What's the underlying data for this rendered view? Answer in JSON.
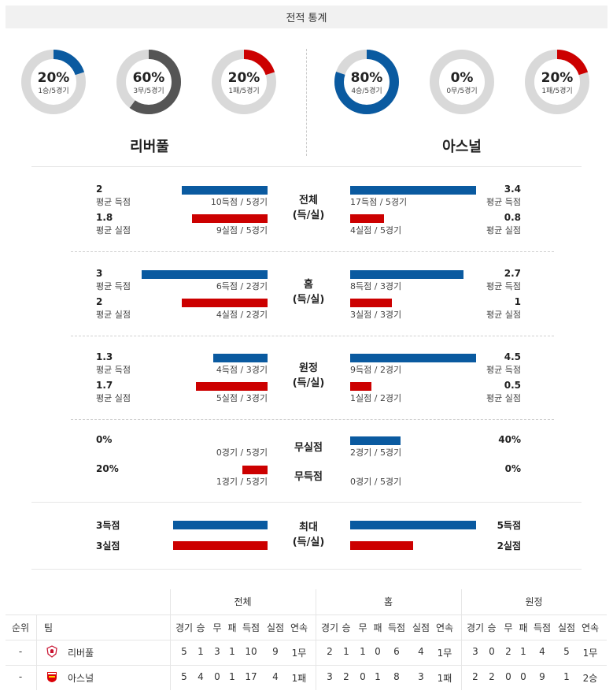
{
  "header": {
    "title": "전적 통계"
  },
  "donuts": [
    {
      "pct": "20%",
      "sub": "1승/5경기",
      "fraction": 0.2,
      "color": "#0a5aa0"
    },
    {
      "pct": "60%",
      "sub": "3무/5경기",
      "fraction": 0.6,
      "color": "#555555"
    },
    {
      "pct": "20%",
      "sub": "1패/5경기",
      "fraction": 0.2,
      "color": "#cc0000"
    },
    {
      "pct": "80%",
      "sub": "4승/5경기",
      "fraction": 0.8,
      "color": "#0a5aa0"
    },
    {
      "pct": "0%",
      "sub": "0무/5경기",
      "fraction": 0.0,
      "color": "#555555"
    },
    {
      "pct": "20%",
      "sub": "1패/5경기",
      "fraction": 0.2,
      "color": "#cc0000"
    }
  ],
  "teams": {
    "home": "리버풀",
    "away": "아스널"
  },
  "sections": [
    {
      "center": [
        "전체",
        "(득/실)"
      ],
      "rows": [
        {
          "left_val": "2",
          "left_sub": "평균 득점",
          "left_cap": "10득점 / 5경기",
          "left_frac": 0.68,
          "right_val": "3.4",
          "right_sub": "평균 득점",
          "right_cap": "17득점 / 5경기",
          "right_frac": 1.0,
          "color": "blue"
        },
        {
          "left_val": "1.8",
          "left_sub": "평균 실점",
          "left_cap": "9실점 / 5경기",
          "left_frac": 0.6,
          "right_val": "0.8",
          "right_sub": "평균 실점",
          "right_cap": "4실점 / 5경기",
          "right_frac": 0.27,
          "color": "red"
        }
      ]
    },
    {
      "center": [
        "홈",
        "(득/실)"
      ],
      "rows": [
        {
          "left_val": "3",
          "left_sub": "평균 득점",
          "left_cap": "6득점 / 2경기",
          "left_frac": 1.0,
          "right_val": "2.7",
          "right_sub": "평균 득점",
          "right_cap": "8득점 / 3경기",
          "right_frac": 0.9,
          "color": "blue"
        },
        {
          "left_val": "2",
          "left_sub": "평균 실점",
          "left_cap": "4실점 / 2경기",
          "left_frac": 0.68,
          "right_val": "1",
          "right_sub": "평균 실점",
          "right_cap": "3실점 / 3경기",
          "right_frac": 0.33,
          "color": "red"
        }
      ]
    },
    {
      "center": [
        "원정",
        "(득/실)"
      ],
      "rows": [
        {
          "left_val": "1.3",
          "left_sub": "평균 득점",
          "left_cap": "4득점 / 3경기",
          "left_frac": 0.43,
          "right_val": "4.5",
          "right_sub": "평균 득점",
          "right_cap": "9득점 / 2경기",
          "right_frac": 1.0,
          "color": "blue"
        },
        {
          "left_val": "1.7",
          "left_sub": "평균 실점",
          "left_cap": "5실점 / 3경기",
          "left_frac": 0.57,
          "right_val": "0.5",
          "right_sub": "평균 실점",
          "right_cap": "1실점 / 2경기",
          "right_frac": 0.17,
          "color": "red"
        }
      ]
    }
  ],
  "clean": {
    "rows": [
      {
        "label": "무실점",
        "left_val": "0%",
        "left_cap": "0경기 / 5경기",
        "left_frac": 0.0,
        "right_val": "40%",
        "right_cap": "2경기 / 5경기",
        "right_frac": 0.4,
        "color": "blue"
      },
      {
        "label": "무득점",
        "left_val": "20%",
        "left_cap": "1경기 / 5경기",
        "left_frac": 0.2,
        "right_val": "0%",
        "right_cap": "0경기 / 5경기",
        "right_frac": 0.0,
        "color": "red"
      }
    ]
  },
  "max": {
    "center": [
      "최대",
      "(득/실)"
    ],
    "rows": [
      {
        "left_val": "3득점",
        "left_frac": 0.75,
        "right_val": "5득점",
        "right_frac": 1.0,
        "color": "blue"
      },
      {
        "left_val": "3실점",
        "left_frac": 0.75,
        "right_val": "2실점",
        "right_frac": 0.5,
        "color": "red"
      }
    ]
  },
  "table": {
    "groups": [
      "전체",
      "홈",
      "원정"
    ],
    "col_rank": "순위",
    "col_team": "팀",
    "sub_cols": [
      "경기",
      "승",
      "무",
      "패",
      "득점",
      "실점",
      "연속"
    ],
    "rows": [
      {
        "rank": "-",
        "team": "리버풀",
        "logo": "liverpool-crest-icon",
        "total": [
          "5",
          "1",
          "3",
          "1",
          "10",
          "9",
          "1무"
        ],
        "home": [
          "2",
          "1",
          "1",
          "0",
          "6",
          "4",
          "1무"
        ],
        "away": [
          "3",
          "0",
          "2",
          "1",
          "4",
          "5",
          "1무"
        ]
      },
      {
        "rank": "-",
        "team": "아스널",
        "logo": "arsenal-crest-icon",
        "total": [
          "5",
          "4",
          "0",
          "1",
          "17",
          "4",
          "1패"
        ],
        "home": [
          "3",
          "2",
          "0",
          "1",
          "8",
          "3",
          "1패"
        ],
        "away": [
          "2",
          "2",
          "0",
          "0",
          "9",
          "1",
          "2승"
        ]
      }
    ]
  }
}
